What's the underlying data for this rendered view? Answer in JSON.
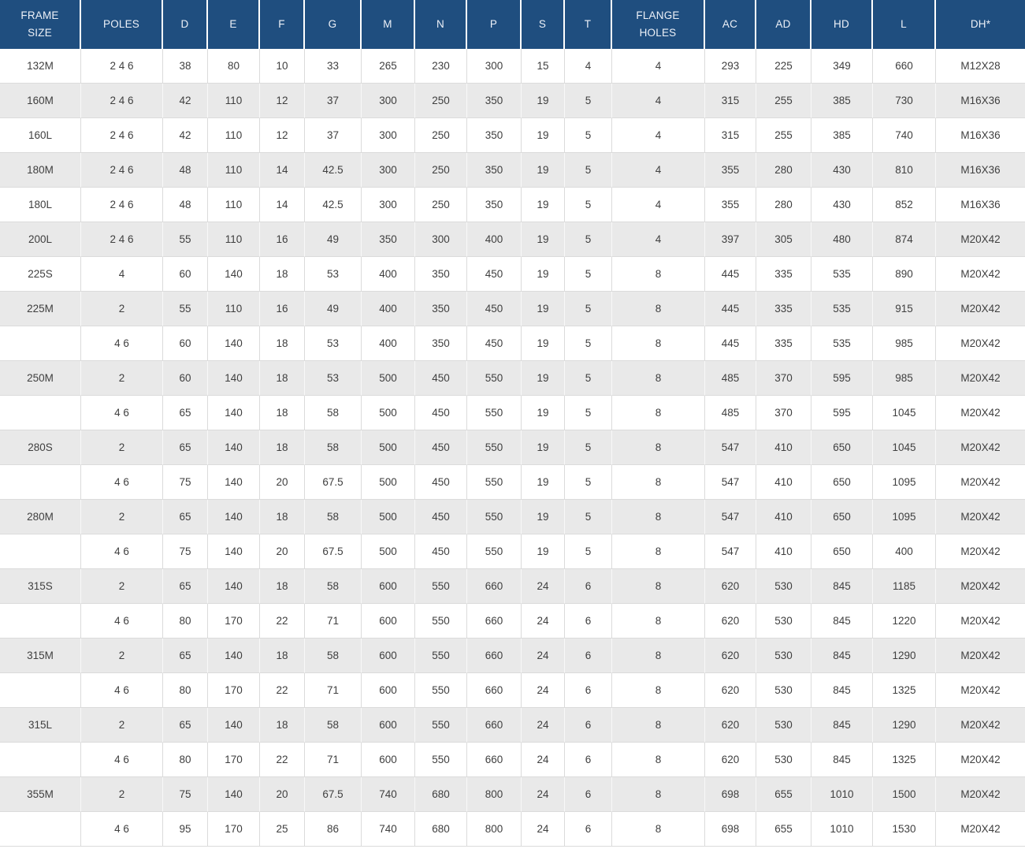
{
  "colors": {
    "header_bg": "#1F4E7F",
    "header_text": "#EDF1F8",
    "row_bg": "#FFFFFF",
    "row_alt_bg": "#E9E9E9",
    "border": "#DBDBDB",
    "body_text": "#3F3F3F"
  },
  "chart_data": {
    "type": "table",
    "columns": [
      "FRAME SIZE",
      "POLES",
      "D",
      "E",
      "F",
      "G",
      "M",
      "N",
      "P",
      "S",
      "T",
      "FLANGE HOLES",
      "AC",
      "AD",
      "HD",
      "L",
      "DH*"
    ],
    "rows": [
      [
        "132M",
        "2 4 6",
        "38",
        "80",
        "10",
        "33",
        "265",
        "230",
        "300",
        "15",
        "4",
        "4",
        "293",
        "225",
        "349",
        "660",
        "M12X28"
      ],
      [
        "160M",
        "2 4 6",
        "42",
        "110",
        "12",
        "37",
        "300",
        "250",
        "350",
        "19",
        "5",
        "4",
        "315",
        "255",
        "385",
        "730",
        "M16X36"
      ],
      [
        "160L",
        "2 4 6",
        "42",
        "110",
        "12",
        "37",
        "300",
        "250",
        "350",
        "19",
        "5",
        "4",
        "315",
        "255",
        "385",
        "740",
        "M16X36"
      ],
      [
        "180M",
        "2 4 6",
        "48",
        "110",
        "14",
        "42.5",
        "300",
        "250",
        "350",
        "19",
        "5",
        "4",
        "355",
        "280",
        "430",
        "810",
        "M16X36"
      ],
      [
        "180L",
        "2 4 6",
        "48",
        "110",
        "14",
        "42.5",
        "300",
        "250",
        "350",
        "19",
        "5",
        "4",
        "355",
        "280",
        "430",
        "852",
        "M16X36"
      ],
      [
        "200L",
        "2 4 6",
        "55",
        "110",
        "16",
        "49",
        "350",
        "300",
        "400",
        "19",
        "5",
        "4",
        "397",
        "305",
        "480",
        "874",
        "M20X42"
      ],
      [
        "225S",
        "4",
        "60",
        "140",
        "18",
        "53",
        "400",
        "350",
        "450",
        "19",
        "5",
        "8",
        "445",
        "335",
        "535",
        "890",
        "M20X42"
      ],
      [
        "225M",
        "2",
        "55",
        "110",
        "16",
        "49",
        "400",
        "350",
        "450",
        "19",
        "5",
        "8",
        "445",
        "335",
        "535",
        "915",
        "M20X42"
      ],
      [
        "",
        "4 6",
        "60",
        "140",
        "18",
        "53",
        "400",
        "350",
        "450",
        "19",
        "5",
        "8",
        "445",
        "335",
        "535",
        "985",
        "M20X42"
      ],
      [
        "250M",
        "2",
        "60",
        "140",
        "18",
        "53",
        "500",
        "450",
        "550",
        "19",
        "5",
        "8",
        "485",
        "370",
        "595",
        "985",
        "M20X42"
      ],
      [
        "",
        "4 6",
        "65",
        "140",
        "18",
        "58",
        "500",
        "450",
        "550",
        "19",
        "5",
        "8",
        "485",
        "370",
        "595",
        "1045",
        "M20X42"
      ],
      [
        "280S",
        "2",
        "65",
        "140",
        "18",
        "58",
        "500",
        "450",
        "550",
        "19",
        "5",
        "8",
        "547",
        "410",
        "650",
        "1045",
        "M20X42"
      ],
      [
        "",
        "4 6",
        "75",
        "140",
        "20",
        "67.5",
        "500",
        "450",
        "550",
        "19",
        "5",
        "8",
        "547",
        "410",
        "650",
        "1095",
        "M20X42"
      ],
      [
        "280M",
        "2",
        "65",
        "140",
        "18",
        "58",
        "500",
        "450",
        "550",
        "19",
        "5",
        "8",
        "547",
        "410",
        "650",
        "1095",
        "M20X42"
      ],
      [
        "",
        "4 6",
        "75",
        "140",
        "20",
        "67.5",
        "500",
        "450",
        "550",
        "19",
        "5",
        "8",
        "547",
        "410",
        "650",
        "400",
        "M20X42"
      ],
      [
        "315S",
        "2",
        "65",
        "140",
        "18",
        "58",
        "600",
        "550",
        "660",
        "24",
        "6",
        "8",
        "620",
        "530",
        "845",
        "1185",
        "M20X42"
      ],
      [
        "",
        "4 6",
        "80",
        "170",
        "22",
        "71",
        "600",
        "550",
        "660",
        "24",
        "6",
        "8",
        "620",
        "530",
        "845",
        "1220",
        "M20X42"
      ],
      [
        "315M",
        "2",
        "65",
        "140",
        "18",
        "58",
        "600",
        "550",
        "660",
        "24",
        "6",
        "8",
        "620",
        "530",
        "845",
        "1290",
        "M20X42"
      ],
      [
        "",
        "4 6",
        "80",
        "170",
        "22",
        "71",
        "600",
        "550",
        "660",
        "24",
        "6",
        "8",
        "620",
        "530",
        "845",
        "1325",
        "M20X42"
      ],
      [
        "315L",
        "2",
        "65",
        "140",
        "18",
        "58",
        "600",
        "550",
        "660",
        "24",
        "6",
        "8",
        "620",
        "530",
        "845",
        "1290",
        "M20X42"
      ],
      [
        "",
        "4 6",
        "80",
        "170",
        "22",
        "71",
        "600",
        "550",
        "660",
        "24",
        "6",
        "8",
        "620",
        "530",
        "845",
        "1325",
        "M20X42"
      ],
      [
        "355M",
        "2",
        "75",
        "140",
        "20",
        "67.5",
        "740",
        "680",
        "800",
        "24",
        "6",
        "8",
        "698",
        "655",
        "1010",
        "1500",
        "M20X42"
      ],
      [
        "",
        "4 6",
        "95",
        "170",
        "25",
        "86",
        "740",
        "680",
        "800",
        "24",
        "6",
        "8",
        "698",
        "655",
        "1010",
        "1530",
        "M20X42"
      ]
    ]
  }
}
